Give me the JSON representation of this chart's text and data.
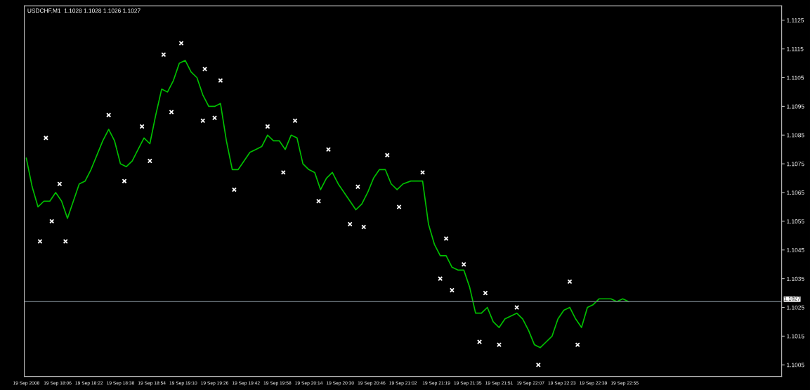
{
  "chart_data": {
    "type": "line",
    "title": "USDCHF,M1  1.1028 1.1028 1.1026 1.1027",
    "series": [
      {
        "color": "#00c000",
        "x": [
          "2008-09-19T17:50",
          "2008-09-19T17:53",
          "2008-09-19T17:56",
          "2008-09-19T17:59",
          "2008-09-19T18:02",
          "2008-09-19T18:05",
          "2008-09-19T18:08",
          "2008-09-19T18:11",
          "2008-09-19T18:14",
          "2008-09-19T18:17",
          "2008-09-19T18:20",
          "2008-09-19T18:23",
          "2008-09-19T18:26",
          "2008-09-19T18:29",
          "2008-09-19T18:32",
          "2008-09-19T18:35",
          "2008-09-19T18:38",
          "2008-09-19T18:41",
          "2008-09-19T18:44",
          "2008-09-19T18:47",
          "2008-09-19T18:50",
          "2008-09-19T18:53",
          "2008-09-19T18:56",
          "2008-09-19T18:59",
          "2008-09-19T19:02",
          "2008-09-19T19:05",
          "2008-09-19T19:08",
          "2008-09-19T19:11",
          "2008-09-19T19:14",
          "2008-09-19T19:17",
          "2008-09-19T19:20",
          "2008-09-19T19:23",
          "2008-09-19T19:26",
          "2008-09-19T19:29",
          "2008-09-19T19:32",
          "2008-09-19T19:35",
          "2008-09-19T19:38",
          "2008-09-19T19:41",
          "2008-09-19T19:44",
          "2008-09-19T19:47",
          "2008-09-19T19:50",
          "2008-09-19T19:53",
          "2008-09-19T19:56",
          "2008-09-19T19:59",
          "2008-09-19T20:02",
          "2008-09-19T20:05",
          "2008-09-19T20:08",
          "2008-09-19T20:11",
          "2008-09-19T20:14",
          "2008-09-19T20:17",
          "2008-09-19T20:20",
          "2008-09-19T20:23",
          "2008-09-19T20:26",
          "2008-09-19T20:29",
          "2008-09-19T20:32",
          "2008-09-19T20:35",
          "2008-09-19T20:38",
          "2008-09-19T20:41",
          "2008-09-19T20:44",
          "2008-09-19T20:47",
          "2008-09-19T20:50",
          "2008-09-19T20:53",
          "2008-09-19T20:56",
          "2008-09-19T20:59",
          "2008-09-19T21:02",
          "2008-09-19T21:06",
          "2008-09-19T21:09",
          "2008-09-19T21:12",
          "2008-09-19T21:15",
          "2008-09-19T21:18",
          "2008-09-19T21:21",
          "2008-09-19T21:24",
          "2008-09-19T21:27",
          "2008-09-19T21:30",
          "2008-09-19T21:33",
          "2008-09-19T21:36",
          "2008-09-19T21:39",
          "2008-09-19T21:42",
          "2008-09-19T21:45",
          "2008-09-19T21:48",
          "2008-09-19T21:51",
          "2008-09-19T21:54",
          "2008-09-19T21:57",
          "2008-09-19T22:00",
          "2008-09-19T22:03",
          "2008-09-19T22:06",
          "2008-09-19T22:09",
          "2008-09-19T22:12",
          "2008-09-19T22:15",
          "2008-09-19T22:18",
          "2008-09-19T22:21",
          "2008-09-19T22:24",
          "2008-09-19T22:27",
          "2008-09-19T22:30",
          "2008-09-19T22:33",
          "2008-09-19T22:36",
          "2008-09-19T22:39",
          "2008-09-19T22:42",
          "2008-09-19T22:45",
          "2008-09-19T22:48",
          "2008-09-19T22:51",
          "2008-09-19T22:54",
          "2008-09-19T22:57"
        ],
        "values": [
          1.1077,
          1.1067,
          1.106,
          1.1062,
          1.1062,
          1.1065,
          1.1062,
          1.1056,
          1.1062,
          1.1068,
          1.1069,
          1.1073,
          1.1078,
          1.1083,
          1.1087,
          1.1083,
          1.1075,
          1.1074,
          1.1076,
          1.108,
          1.1084,
          1.1082,
          1.1092,
          1.1101,
          1.11,
          1.1104,
          1.111,
          1.1111,
          1.1107,
          1.1105,
          1.1099,
          1.1095,
          1.1095,
          1.1096,
          1.1083,
          1.1073,
          1.1073,
          1.1076,
          1.1079,
          1.108,
          1.1081,
          1.1085,
          1.1083,
          1.1083,
          1.108,
          1.1085,
          1.1084,
          1.1075,
          1.1073,
          1.1072,
          1.1066,
          1.107,
          1.1072,
          1.1068,
          1.1065,
          1.1062,
          1.1059,
          1.1061,
          1.1065,
          1.107,
          1.1073,
          1.1073,
          1.1068,
          1.1066,
          1.1068,
          1.1069,
          1.1069,
          1.1069,
          1.1054,
          1.1047,
          1.1043,
          1.1043,
          1.1039,
          1.1038,
          1.1038,
          1.1032,
          1.1023,
          1.1023,
          1.1025,
          1.102,
          1.1018,
          1.1021,
          1.1022,
          1.1023,
          1.1021,
          1.1017,
          1.1012,
          1.1011,
          1.1013,
          1.1015,
          1.1021,
          1.1024,
          1.1025,
          1.1021,
          1.1018,
          1.1025,
          1.1026,
          1.1028,
          1.1028,
          1.1028,
          1.1027,
          1.1028,
          1.1027
        ]
      },
      {
        "type": "scatter",
        "color": "#ffffff",
        "marker": "cross",
        "x": [
          "2008-09-19T17:57",
          "2008-09-19T18:00",
          "2008-09-19T18:03",
          "2008-09-19T18:07",
          "2008-09-19T18:10",
          "2008-09-19T18:32",
          "2008-09-19T18:40",
          "2008-09-19T18:49",
          "2008-09-19T18:53",
          "2008-09-19T19:00",
          "2008-09-19T19:04",
          "2008-09-19T19:09",
          "2008-09-19T19:21",
          "2008-09-19T19:20",
          "2008-09-19T19:29",
          "2008-09-19T19:26",
          "2008-09-19T19:36",
          "2008-09-19T19:53",
          "2008-09-19T20:01",
          "2008-09-19T20:07",
          "2008-09-19T20:19",
          "2008-09-19T20:24",
          "2008-09-19T20:35",
          "2008-09-19T20:39",
          "2008-09-19T20:42",
          "2008-09-19T20:54",
          "2008-09-19T21:00",
          "2008-09-19T21:12",
          "2008-09-19T21:24",
          "2008-09-19T21:21",
          "2008-09-19T21:33",
          "2008-09-19T21:27",
          "2008-09-19T21:44",
          "2008-09-19T21:41",
          "2008-09-19T21:51",
          "2008-09-19T22:00",
          "2008-09-19T22:11",
          "2008-09-19T22:27",
          "2008-09-19T22:31"
        ],
        "values": [
          1.1048,
          1.1084,
          1.1055,
          1.1068,
          1.1048,
          1.1092,
          1.1069,
          1.1088,
          1.1076,
          1.1113,
          1.1093,
          1.1117,
          1.1108,
          1.109,
          1.1104,
          1.1091,
          1.1066,
          1.1088,
          1.1072,
          1.109,
          1.1062,
          1.108,
          1.1054,
          1.1067,
          1.1053,
          1.1078,
          1.106,
          1.1072,
          1.1049,
          1.1035,
          1.104,
          1.1031,
          1.103,
          1.1013,
          1.1012,
          1.1025,
          1.1005,
          1.1034,
          1.1012
        ]
      }
    ],
    "xlim": [
      "2008-09-19T17:49",
      "2008-09-20T00:15"
    ],
    "xticks": [
      {
        "value": "2008-09-19T17:50",
        "label": "19 Sep 2008"
      },
      {
        "value": "2008-09-19T18:06",
        "label": "19 Sep 18:06"
      },
      {
        "value": "2008-09-19T18:22",
        "label": "19 Sep 18:22"
      },
      {
        "value": "2008-09-19T18:38",
        "label": "19 Sep 18:38"
      },
      {
        "value": "2008-09-19T18:54",
        "label": "19 Sep 18:54"
      },
      {
        "value": "2008-09-19T19:10",
        "label": "19 Sep 19:10"
      },
      {
        "value": "2008-09-19T19:26",
        "label": "19 Sep 19:26"
      },
      {
        "value": "2008-09-19T19:42",
        "label": "19 Sep 19:42"
      },
      {
        "value": "2008-09-19T19:58",
        "label": "19 Sep 19:58"
      },
      {
        "value": "2008-09-19T20:14",
        "label": "19 Sep 20:14"
      },
      {
        "value": "2008-09-19T20:30",
        "label": "19 Sep 20:30"
      },
      {
        "value": "2008-09-19T20:46",
        "label": "19 Sep 20:46"
      },
      {
        "value": "2008-09-19T21:02",
        "label": "19 Sep 21:02"
      },
      {
        "value": "2008-09-19T21:19",
        "label": "19 Sep 21:19"
      },
      {
        "value": "2008-09-19T21:35",
        "label": "19 Sep 21:35"
      },
      {
        "value": "2008-09-19T21:51",
        "label": "19 Sep 21:51"
      },
      {
        "value": "2008-09-19T22:07",
        "label": "19 Sep 22:07"
      },
      {
        "value": "2008-09-19T22:23",
        "label": "19 Sep 22:23"
      },
      {
        "value": "2008-09-19T22:39",
        "label": "19 Sep 22:39"
      },
      {
        "value": "2008-09-19T22:55",
        "label": "19 Sep 22:55"
      }
    ],
    "ylim": [
      1.1001,
      1.113
    ],
    "yticks": [
      1.1005,
      1.1015,
      1.1025,
      1.1035,
      1.1045,
      1.1055,
      1.1065,
      1.1075,
      1.1085,
      1.1095,
      1.1105,
      1.1115,
      1.1125
    ],
    "ref_lines": [
      {
        "axis": "y",
        "value": 1.1027,
        "label": "1.1027",
        "color": "#6a747a"
      }
    ],
    "grid": false,
    "legend": false
  }
}
